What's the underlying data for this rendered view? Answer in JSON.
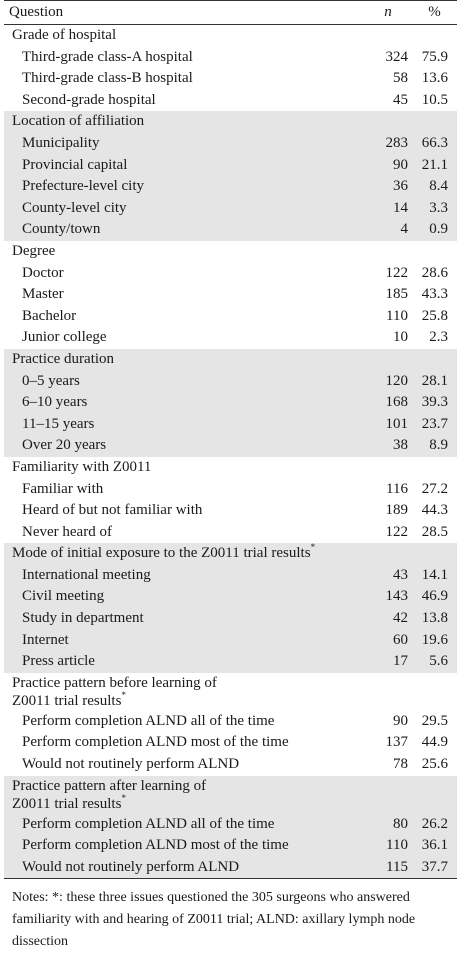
{
  "header": {
    "question": "Question",
    "n": "n",
    "pct": "%"
  },
  "sections": [
    {
      "title": "Grade of hospital",
      "shade": false,
      "marker": "",
      "items": [
        {
          "label": "Third-grade class-A hospital",
          "n": "324",
          "pct": "75.9"
        },
        {
          "label": "Third-grade class-B hospital",
          "n": "58",
          "pct": "13.6"
        },
        {
          "label": "Second-grade hospital",
          "n": "45",
          "pct": "10.5"
        }
      ]
    },
    {
      "title": "Location of affiliation",
      "shade": true,
      "marker": "",
      "items": [
        {
          "label": "Municipality",
          "n": "283",
          "pct": "66.3"
        },
        {
          "label": "Provincial capital",
          "n": "90",
          "pct": "21.1"
        },
        {
          "label": "Prefecture-level city",
          "n": "36",
          "pct": "8.4"
        },
        {
          "label": "County-level city",
          "n": "14",
          "pct": "3.3"
        },
        {
          "label": "County/town",
          "n": "4",
          "pct": "0.9"
        }
      ]
    },
    {
      "title": "Degree",
      "shade": false,
      "marker": "",
      "items": [
        {
          "label": "Doctor",
          "n": "122",
          "pct": "28.6"
        },
        {
          "label": "Master",
          "n": "185",
          "pct": "43.3"
        },
        {
          "label": "Bachelor",
          "n": "110",
          "pct": "25.8"
        },
        {
          "label": "Junior college",
          "n": "10",
          "pct": "2.3"
        }
      ]
    },
    {
      "title": "Practice duration",
      "shade": true,
      "marker": "",
      "items": [
        {
          "label": "0–5 years",
          "n": "120",
          "pct": "28.1"
        },
        {
          "label": "6–10 years",
          "n": "168",
          "pct": "39.3"
        },
        {
          "label": "11–15 years",
          "n": "101",
          "pct": "23.7"
        },
        {
          "label": "Over 20 years",
          "n": "38",
          "pct": "8.9"
        }
      ]
    },
    {
      "title": "Familiarity with Z0011",
      "shade": false,
      "marker": "",
      "items": [
        {
          "label": "Familiar with",
          "n": "116",
          "pct": "27.2"
        },
        {
          "label": "Heard of but not familiar with",
          "n": "189",
          "pct": "44.3"
        },
        {
          "label": "Never heard of",
          "n": "122",
          "pct": "28.5"
        }
      ]
    },
    {
      "title": "Mode of initial exposure to the Z0011 trial results",
      "shade": true,
      "marker": "*",
      "items": [
        {
          "label": "International meeting",
          "n": "43",
          "pct": "14.1"
        },
        {
          "label": "Civil meeting",
          "n": "143",
          "pct": "46.9"
        },
        {
          "label": "Study in department",
          "n": "42",
          "pct": "13.8"
        },
        {
          "label": "Internet",
          "n": "60",
          "pct": "19.6"
        },
        {
          "label": "Press article",
          "n": "17",
          "pct": "5.6"
        }
      ]
    },
    {
      "title": "Practice pattern before learning of",
      "title2": "Z0011 trial results",
      "shade": false,
      "marker": "*",
      "items": [
        {
          "label": "Perform completion ALND all of the time",
          "n": "90",
          "pct": "29.5"
        },
        {
          "label": "Perform completion ALND most of the time",
          "n": "137",
          "pct": "44.9"
        },
        {
          "label": "Would not routinely perform ALND",
          "n": "78",
          "pct": "25.6"
        }
      ]
    },
    {
      "title": "Practice pattern after learning of",
      "title2": "Z0011 trial results",
      "shade": true,
      "marker": "*",
      "items": [
        {
          "label": "Perform completion ALND all of the time",
          "n": "80",
          "pct": "26.2"
        },
        {
          "label": "Perform completion ALND most of the time",
          "n": "110",
          "pct": "36.1"
        },
        {
          "label": "Would not routinely perform ALND",
          "n": "115",
          "pct": "37.7"
        }
      ]
    }
  ],
  "notes": "Notes: *:  these three issues questioned the 305 surgeons who answered familiarity with and hearing of Z0011 trial; ALND: axillary lymph node dissection"
}
